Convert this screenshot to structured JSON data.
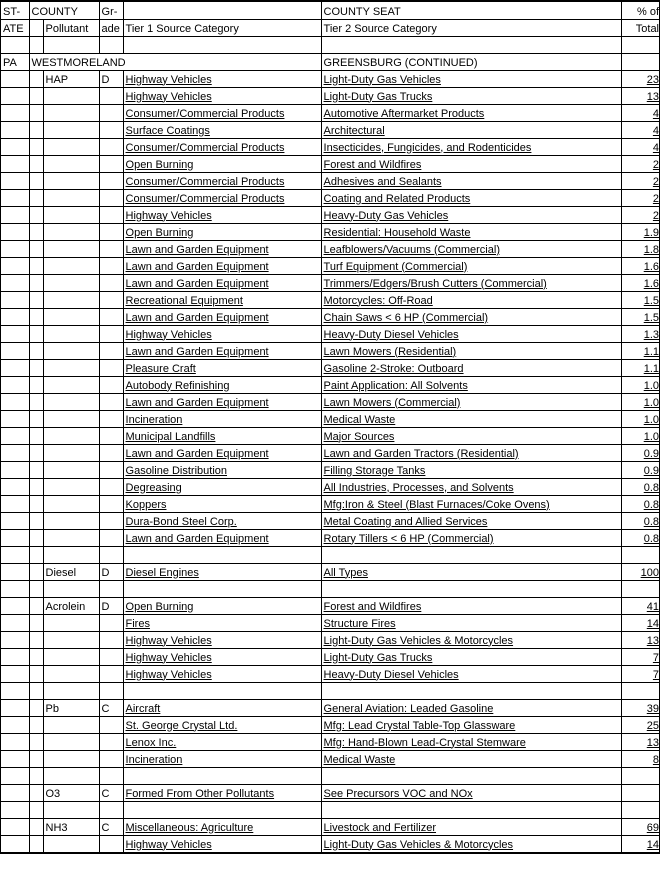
{
  "header": {
    "state1": "ST-",
    "state2": "ATE",
    "county": "COUNTY",
    "pollutant": "Pollutant",
    "grade1": "Gr-",
    "grade2": "ade",
    "tier1": "Tier 1 Source Category",
    "county_seat": "COUNTY SEAT",
    "tier2": "Tier 2 Source Category",
    "pct1": "% of",
    "pct2": "Total"
  },
  "region": {
    "state": "PA",
    "county": "WESTMORELAND",
    "seat": "GREENSBURG (CONTINUED)"
  },
  "sections": [
    {
      "pollutant": "HAP",
      "grade": "D",
      "rows": [
        {
          "t1": "Highway Vehicles",
          "t2": "Light-Duty Gas Vehicles",
          "v": "23"
        },
        {
          "t1": "Highway Vehicles",
          "t2": "Light-Duty Gas Trucks",
          "v": "13"
        },
        {
          "t1": "Consumer/Commercial Products",
          "t2": "Automotive Aftermarket Products",
          "v": "4"
        },
        {
          "t1": "Surface Coatings",
          "t2": "Architectural",
          "v": "4"
        },
        {
          "t1": "Consumer/Commercial Products",
          "t2": "Insecticides, Fungicides, and Rodenticides",
          "v": "4"
        },
        {
          "t1": "Open Burning",
          "t2": "Forest and Wildfires",
          "v": "2"
        },
        {
          "t1": "Consumer/Commercial Products",
          "t2": "Adhesives and Sealants",
          "v": "2"
        },
        {
          "t1": "Consumer/Commercial Products",
          "t2": "Coating and Related Products",
          "v": "2"
        },
        {
          "t1": "Highway Vehicles",
          "t2": "Heavy-Duty Gas Vehicles",
          "v": "2"
        },
        {
          "t1": "Open Burning",
          "t2": "Residential: Household Waste",
          "v": "1.9"
        },
        {
          "t1": "Lawn and Garden Equipment",
          "t2": "Leafblowers/Vacuums (Commercial)",
          "v": "1.8"
        },
        {
          "t1": "Lawn and Garden Equipment",
          "t2": "Turf Equipment (Commercial)",
          "v": "1.6"
        },
        {
          "t1": "Lawn and Garden Equipment",
          "t2": "Trimmers/Edgers/Brush Cutters (Commercial)",
          "v": "1.6"
        },
        {
          "t1": "Recreational Equipment",
          "t2": "Motorcycles: Off-Road",
          "v": "1.5"
        },
        {
          "t1": "Lawn and Garden Equipment",
          "t2": "Chain Saws < 6 HP (Commercial)",
          "v": "1.5"
        },
        {
          "t1": "Highway Vehicles",
          "t2": "Heavy-Duty Diesel Vehicles",
          "v": "1.3"
        },
        {
          "t1": "Lawn and Garden Equipment",
          "t2": "Lawn Mowers (Residential)",
          "v": "1.1"
        },
        {
          "t1": "Pleasure Craft",
          "t2": "Gasoline 2-Stroke: Outboard",
          "v": "1.1"
        },
        {
          "t1": "Autobody Refinishing",
          "t2": "Paint Application: All Solvents",
          "v": "1.0"
        },
        {
          "t1": "Lawn and Garden Equipment",
          "t2": "Lawn Mowers (Commercial)",
          "v": "1.0"
        },
        {
          "t1": "Incineration",
          "t2": "Medical Waste",
          "v": "1.0"
        },
        {
          "t1": "Municipal Landfills",
          "t2": "Major Sources",
          "v": "1.0"
        },
        {
          "t1": "Lawn and Garden Equipment",
          "t2": "Lawn and Garden Tractors (Residential)",
          "v": "0.9"
        },
        {
          "t1": "Gasoline Distribution",
          "t2": "Filling Storage Tanks",
          "v": "0.9"
        },
        {
          "t1": "Degreasing",
          "t2": "All Industries, Processes, and Solvents",
          "v": "0.8"
        },
        {
          "t1": "Koppers",
          "t2": "Mfg:Iron & Steel (Blast Furnaces/Coke Ovens)",
          "v": "0.8"
        },
        {
          "t1": "Dura-Bond Steel Corp.",
          "t2": "Metal Coating and Allied Services",
          "v": "0.8"
        },
        {
          "t1": "Lawn and Garden Equipment",
          "t2": "Rotary Tillers < 6 HP (Commercial)",
          "v": "0.8"
        }
      ]
    },
    {
      "pollutant": "Diesel",
      "grade": "D",
      "rows": [
        {
          "t1": "Diesel Engines",
          "t2": "All Types",
          "v": "100"
        }
      ]
    },
    {
      "pollutant": "Acrolein",
      "grade": "D",
      "rows": [
        {
          "t1": "Open Burning",
          "t2": "Forest and Wildfires",
          "v": "41"
        },
        {
          "t1": "Fires",
          "t2": "Structure Fires",
          "v": "14"
        },
        {
          "t1": "Highway Vehicles",
          "t2": "Light-Duty Gas Vehicles & Motorcycles",
          "v": "13"
        },
        {
          "t1": "Highway Vehicles",
          "t2": "Light-Duty Gas Trucks",
          "v": "7"
        },
        {
          "t1": "Highway Vehicles",
          "t2": "Heavy-Duty Diesel Vehicles",
          "v": "7"
        }
      ]
    },
    {
      "pollutant": "Pb",
      "grade": "C",
      "rows": [
        {
          "t1": "Aircraft",
          "t2": "General Aviation: Leaded Gasoline",
          "v": "39"
        },
        {
          "t1": "St. George Crystal Ltd.",
          "t2": "Mfg: Lead Crystal Table-Top Glassware",
          "v": "25"
        },
        {
          "t1": "Lenox Inc.",
          "t2": "Mfg: Hand-Blown Lead-Crystal Stemware",
          "v": "13"
        },
        {
          "t1": "Incineration",
          "t2": "Medical Waste",
          "v": "8"
        }
      ]
    },
    {
      "pollutant": "O3",
      "grade": "C",
      "rows": [
        {
          "t1": "Formed From Other Pollutants",
          "t2": "See Precursors VOC and NOx",
          "v": ""
        }
      ]
    },
    {
      "pollutant": "NH3",
      "grade": "C",
      "rows": [
        {
          "t1": "Miscellaneous: Agriculture",
          "t2": "Livestock and Fertilizer",
          "v": "69"
        },
        {
          "t1": "Highway Vehicles",
          "t2": "Light-Duty Gas Vehicles & Motorcycles",
          "v": "14"
        }
      ]
    }
  ]
}
